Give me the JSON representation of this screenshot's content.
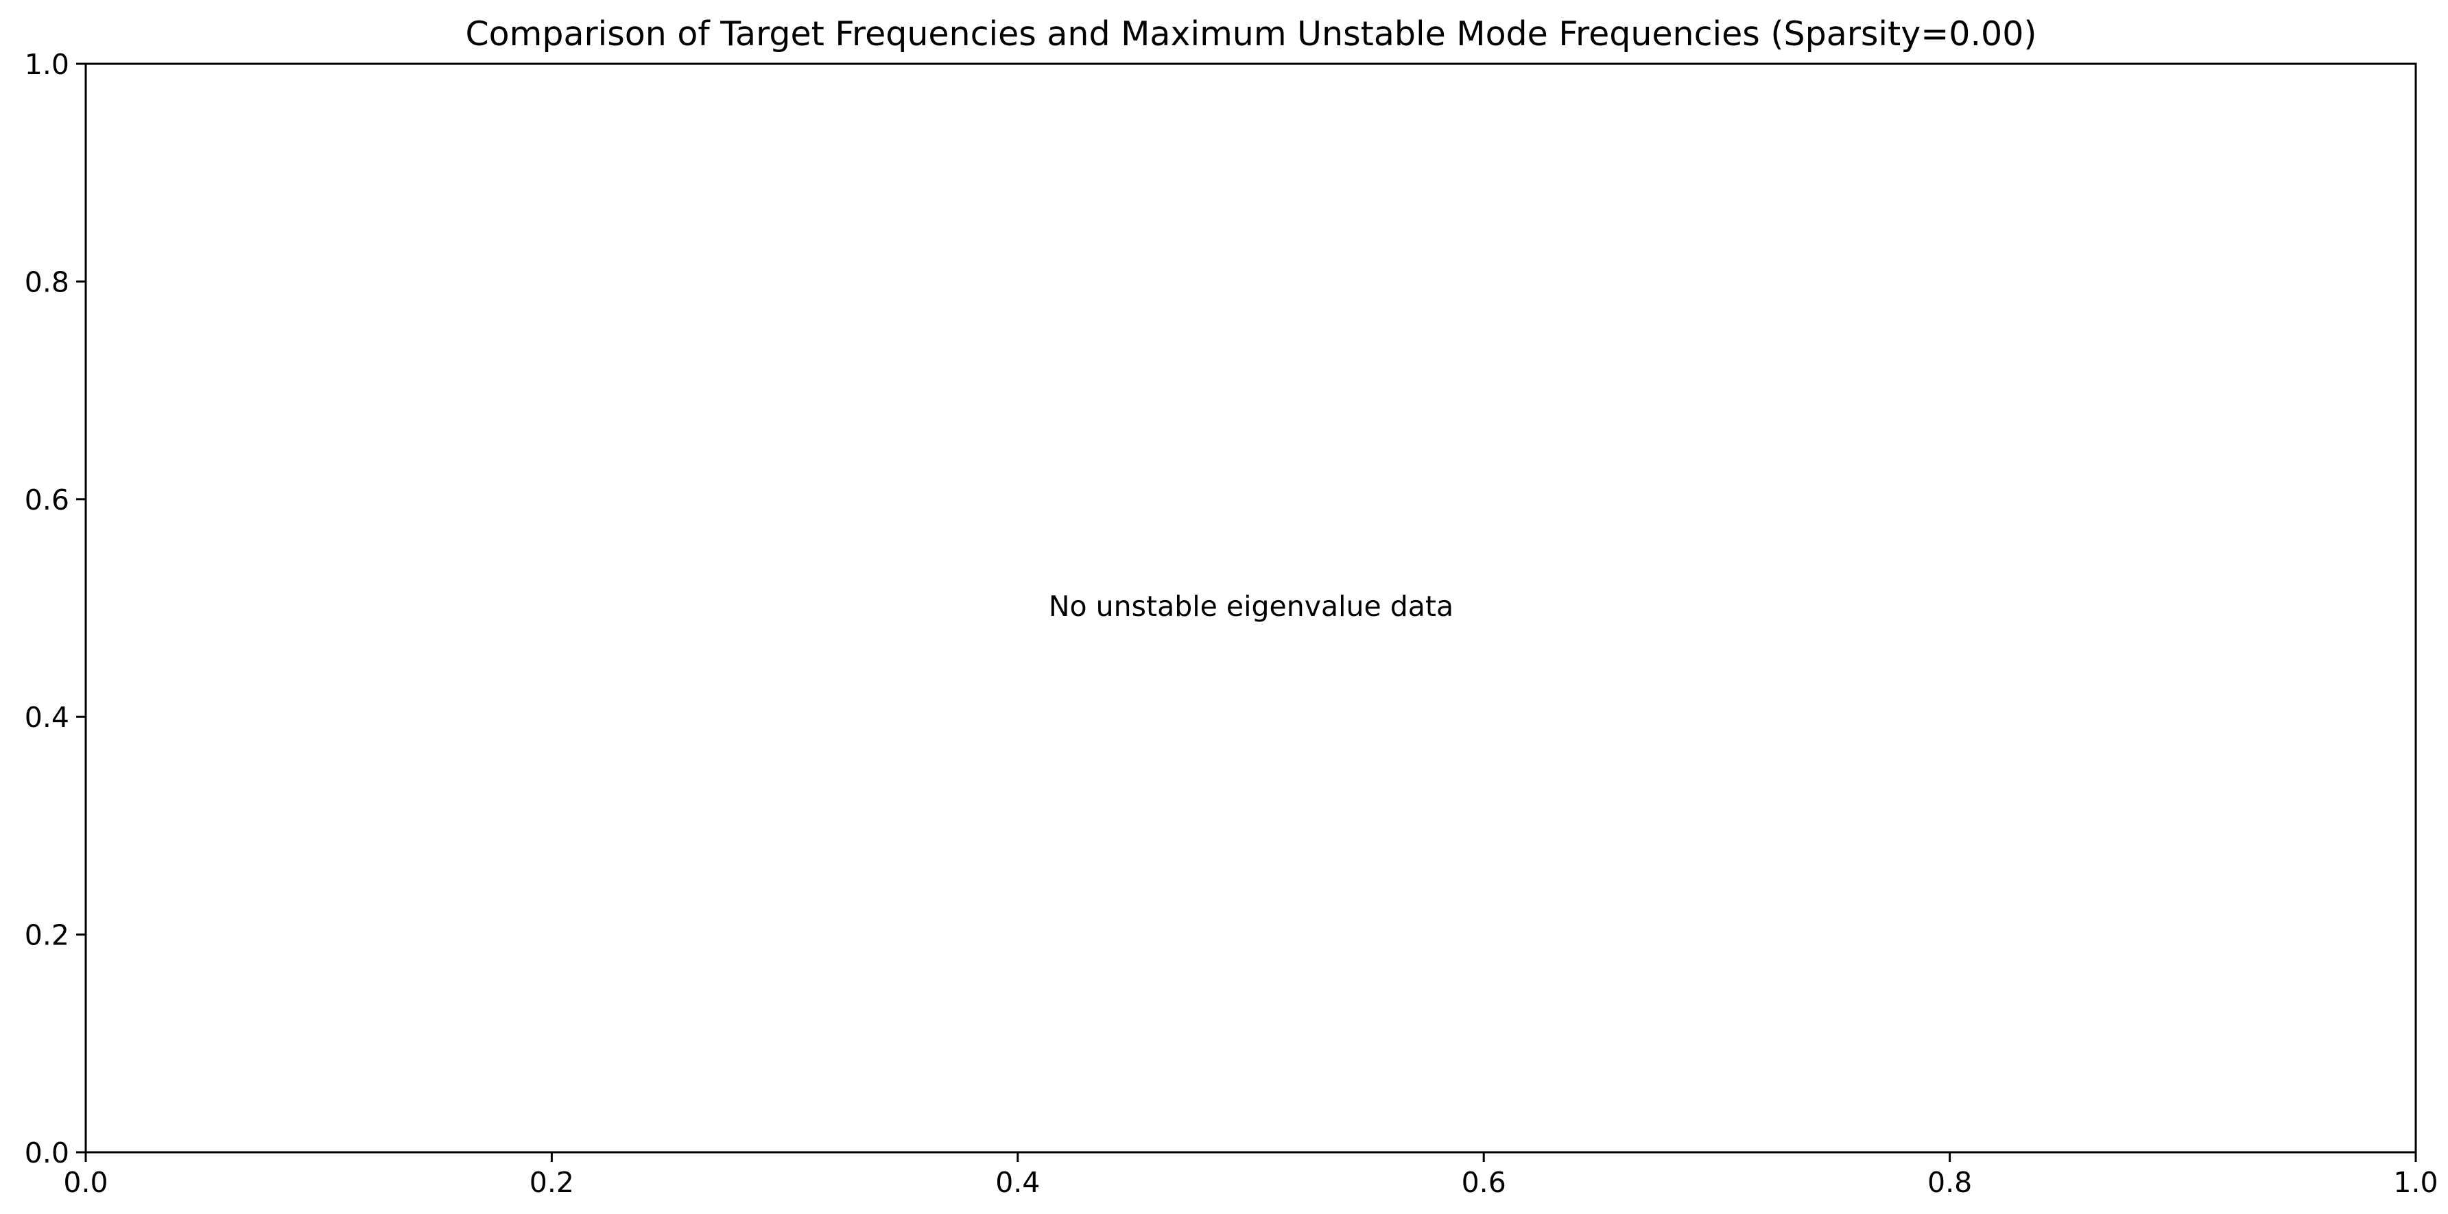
{
  "chart_data": {
    "type": "scatter",
    "title": "Comparison of Target Frequencies and Maximum Unstable Mode Frequencies (Sparsity=0.00)",
    "xlabel": "",
    "ylabel": "",
    "xlim": [
      0.0,
      1.0
    ],
    "ylim": [
      0.0,
      1.0
    ],
    "x_ticks": [
      "0.0",
      "0.2",
      "0.4",
      "0.6",
      "0.8",
      "1.0"
    ],
    "y_ticks": [
      "0.0",
      "0.2",
      "0.4",
      "0.6",
      "0.8",
      "1.0"
    ],
    "grid": false,
    "series": [],
    "annotation": "No unstable eigenvalue data",
    "colors": {
      "axis": "#000000",
      "background": "#ffffff"
    }
  }
}
